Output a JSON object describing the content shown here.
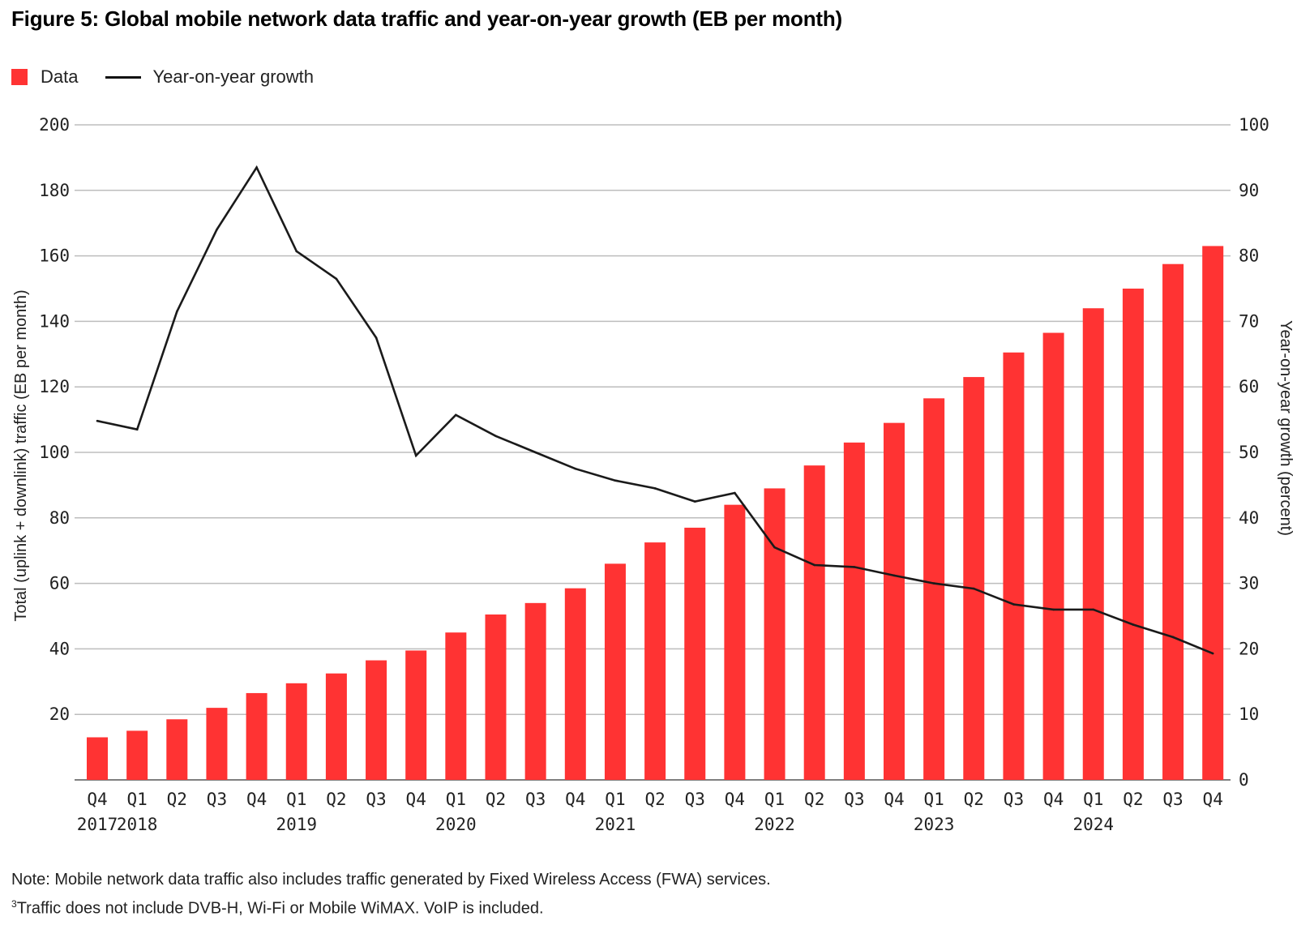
{
  "title": "Figure 5: Global mobile network data traffic and year-on-year growth (EB per month)",
  "legend": {
    "bars": "Data",
    "line": "Year-on-year growth"
  },
  "notes": {
    "note1": "Note: Mobile network data traffic also includes traffic generated by Fixed Wireless Access (FWA) services.",
    "note2_mark": "3",
    "note2": "Traffic does not include DVB-H, Wi-Fi or Mobile WiMAX. VoIP is included."
  },
  "colors": {
    "bar": "#ff3333",
    "line": "#1a1a1a",
    "grid": "#bdbdbd"
  },
  "chart_data": {
    "type": "bar",
    "title": "Figure 5: Global mobile network data traffic and year-on-year growth (EB per month)",
    "categories": [
      "Q4",
      "Q1",
      "Q2",
      "Q3",
      "Q4",
      "Q1",
      "Q2",
      "Q3",
      "Q4",
      "Q1",
      "Q2",
      "Q3",
      "Q4",
      "Q1",
      "Q2",
      "Q3",
      "Q4",
      "Q1",
      "Q2",
      "Q3",
      "Q4",
      "Q1",
      "Q2",
      "Q3",
      "Q4",
      "Q1",
      "Q2",
      "Q3",
      "Q4"
    ],
    "year_labels": [
      {
        "index": 0,
        "label": "2017"
      },
      {
        "index": 1,
        "label": "2018"
      },
      {
        "index": 5,
        "label": "2019"
      },
      {
        "index": 9,
        "label": "2020"
      },
      {
        "index": 13,
        "label": "2021"
      },
      {
        "index": 17,
        "label": "2022"
      },
      {
        "index": 21,
        "label": "2023"
      },
      {
        "index": 25,
        "label": "2024"
      }
    ],
    "series": [
      {
        "name": "Data",
        "type": "bar",
        "axis": "left",
        "values": [
          13,
          15,
          18.5,
          22,
          26.5,
          29.5,
          32.5,
          36.5,
          39.5,
          45,
          50.5,
          54,
          58.5,
          66,
          72.5,
          77,
          84,
          89,
          96,
          103,
          109,
          116.5,
          123,
          130.5,
          136.5,
          144,
          150,
          157.5,
          163
        ]
      },
      {
        "name": "Year-on-year growth",
        "type": "line",
        "axis": "right",
        "values": [
          54.8,
          53.5,
          71.5,
          84,
          93.5,
          80.7,
          76.5,
          67.5,
          49.5,
          55.7,
          52.5,
          50,
          47.5,
          45.7,
          44.5,
          42.5,
          43.8,
          35.5,
          32.8,
          32.5,
          31.2,
          30,
          29.2,
          26.8,
          26,
          26,
          23.7,
          21.8,
          19.3
        ]
      }
    ],
    "ylabel": "Total (uplink + downlink) traffic (EB per month)",
    "y2label": "Year-on-year growth (percent)",
    "ylim": [
      0,
      200
    ],
    "y2lim": [
      0,
      100
    ],
    "yticks": [
      20,
      40,
      60,
      80,
      100,
      120,
      140,
      160,
      180,
      200
    ],
    "y2ticks": [
      0,
      10,
      20,
      30,
      40,
      50,
      60,
      70,
      80,
      90,
      100
    ],
    "grid": true,
    "legend_position": "top-left"
  }
}
